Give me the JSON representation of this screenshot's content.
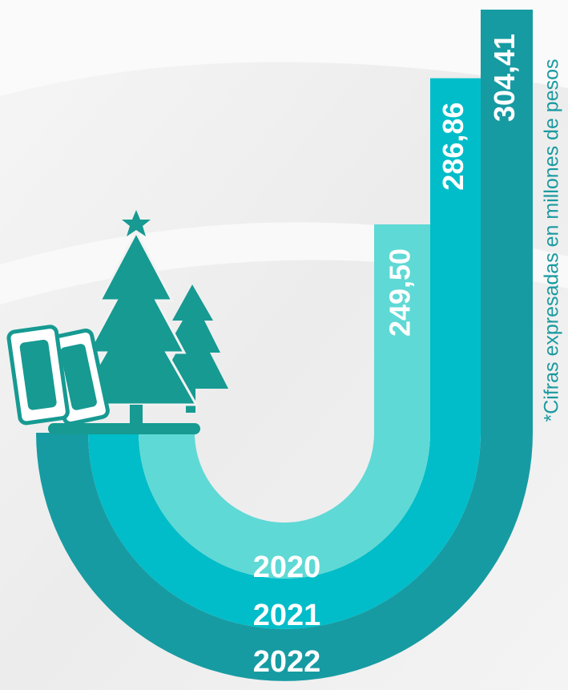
{
  "chart_data": {
    "type": "bar",
    "categories": [
      "2020",
      "2021",
      "2022"
    ],
    "values": [
      249.5,
      286.86,
      304.41
    ],
    "value_labels": [
      "249,50",
      "286,86",
      "304,41"
    ],
    "colors": [
      "#5fd9d5",
      "#00bdc9",
      "#179ba2"
    ],
    "note": "*Cifras expresadas en millones de pesos"
  }
}
